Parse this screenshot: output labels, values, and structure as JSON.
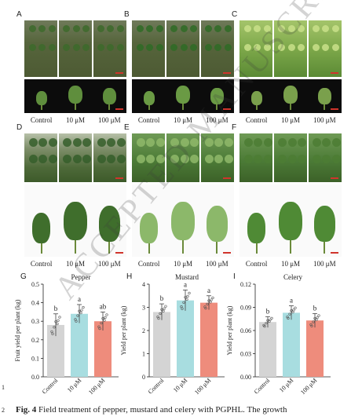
{
  "panels_top": [
    {
      "letter": "A",
      "labels": [
        "Control",
        "10 μM",
        "100 μM"
      ]
    },
    {
      "letter": "B",
      "labels": [
        "Control",
        "10 μM",
        "100 μM"
      ]
    },
    {
      "letter": "C",
      "labels": [
        "Control",
        "10 μM",
        "100 μM"
      ]
    }
  ],
  "panels_mid": [
    {
      "letter": "D",
      "labels": [
        "Control",
        "10 μM",
        "100 μM"
      ]
    },
    {
      "letter": "E",
      "labels": [
        "Control",
        "10 μM",
        "100 μM"
      ]
    },
    {
      "letter": "F",
      "labels": [
        "Control",
        "10 μM",
        "100 μM"
      ]
    }
  ],
  "line_numbers": [
    "1",
    "2"
  ],
  "caption": {
    "label": "Fig. 4",
    "text": " Field treatment of pepper, mustard and celery with PGPHL. The growth"
  },
  "watermark": "ACCEPTED MANUSCRIPT",
  "colors": {
    "control": "#d4d4d4",
    "10uM": "#a8dde0",
    "100uM": "#ee8c7c"
  },
  "chart_data": [
    {
      "panel": "G",
      "type": "bar",
      "title": "Pepper",
      "ylabel": "Fruit yield per plant (kg)",
      "categories": [
        "Control",
        "10 μM",
        "100 μM"
      ],
      "values": [
        0.28,
        0.34,
        0.3
      ],
      "errors": [
        0.06,
        0.05,
        0.05
      ],
      "letters": [
        "b",
        "a",
        "ab"
      ],
      "ylim": [
        0,
        0.5
      ],
      "yticks": [
        "0.0",
        "0.1",
        "0.2",
        "0.3",
        "0.4",
        "0.5"
      ]
    },
    {
      "panel": "H",
      "type": "bar",
      "title": "Mustard",
      "ylabel": "Yield per plant (kg)",
      "categories": [
        "Control",
        "10 μM",
        "100 μM"
      ],
      "values": [
        2.8,
        3.3,
        3.2
      ],
      "errors": [
        0.35,
        0.45,
        0.3
      ],
      "letters": [
        "b",
        "a",
        "a"
      ],
      "ylim": [
        0,
        4
      ],
      "yticks": [
        "0",
        "1",
        "2",
        "3",
        "4"
      ]
    },
    {
      "panel": "I",
      "type": "bar",
      "title": "Celery",
      "ylabel": "Yield per plant (kg)",
      "categories": [
        "Control",
        "10 μM",
        "100 μM"
      ],
      "values": [
        0.071,
        0.083,
        0.073
      ],
      "errors": [
        0.007,
        0.009,
        0.009
      ],
      "letters": [
        "b",
        "a",
        "b"
      ],
      "ylim": [
        0,
        0.12
      ],
      "yticks": [
        "0.00",
        "0.03",
        "0.06",
        "0.09",
        "0.12"
      ]
    }
  ]
}
